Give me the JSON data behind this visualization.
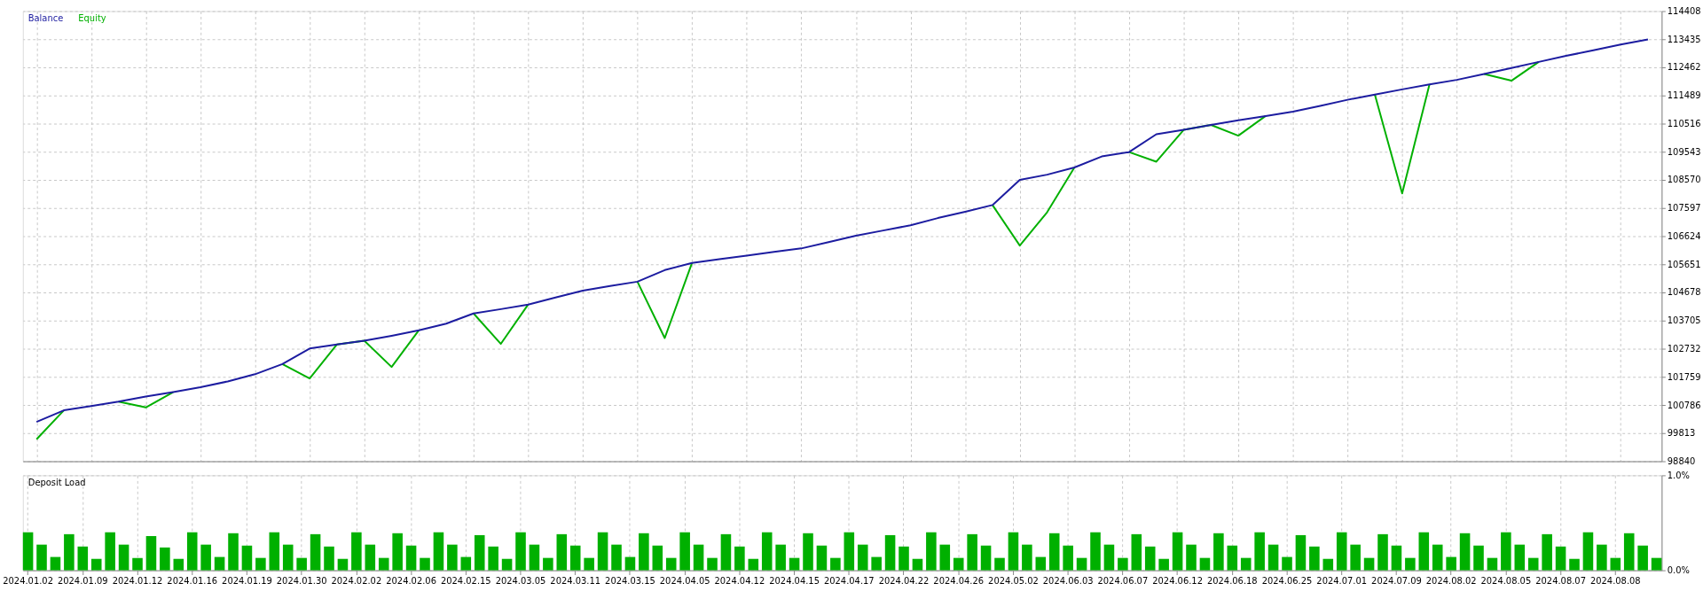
{
  "chart_data": [
    {
      "type": "line",
      "legend": "top left",
      "grid": true,
      "tick_labels": "y",
      "line_style": "solid",
      "marker": "none",
      "categories": [
        "2024.01.02",
        null,
        "2024.01.09",
        null,
        "2024.01.12",
        null,
        "2024.01.16",
        null,
        "2024.01.19",
        null,
        "2024.01.30",
        null,
        "2024.02.02",
        null,
        "2024.02.06",
        null,
        "2024.02.15",
        null,
        "2024.03.05",
        null,
        "2024.03.11",
        null,
        "2024.03.15",
        null,
        "2024.04.05",
        null,
        "2024.04.12",
        null,
        "2024.04.15",
        null,
        "2024.04.17",
        null,
        "2024.04.22",
        null,
        "2024.04.26",
        null,
        "2024.05.02",
        null,
        "2024.06.03",
        null,
        "2024.06.07",
        null,
        "2024.06.12",
        null,
        "2024.06.18",
        null,
        "2024.06.25",
        null,
        "2024.07.01",
        null,
        "2024.07.09",
        null,
        "2024.08.02",
        null,
        "2024.08.05",
        null,
        "2024.08.07",
        null,
        "2024.08.08",
        null
      ],
      "ylim": [
        98840,
        114408
      ],
      "yticks": [
        98840,
        99813,
        100786,
        101759,
        102732,
        103705,
        104678,
        105651,
        106624,
        107597,
        108570,
        109543,
        110516,
        111489,
        112462,
        113435,
        114408
      ],
      "series": [
        {
          "name": "Equity",
          "color": "#00b000",
          "values": [
            99600,
            100600,
            null,
            100900,
            100700,
            101230,
            null,
            null,
            null,
            102200,
            101700,
            102880,
            103010,
            102100,
            103370,
            null,
            103950,
            102900,
            104260,
            null,
            null,
            null,
            105050,
            103100,
            105700,
            null,
            null,
            null,
            null,
            null,
            null,
            null,
            null,
            null,
            null,
            107700,
            106300,
            107450,
            109000,
            null,
            109530,
            109200,
            110300,
            110470,
            110100,
            110780,
            null,
            null,
            null,
            111520,
            108100,
            111870,
            null,
            112230,
            112000,
            112650,
            null,
            null,
            null,
            null
          ]
        },
        {
          "name": "Balance",
          "color": "#1c1ca0",
          "values": [
            100200,
            100600,
            100750,
            100900,
            101080,
            101230,
            101400,
            101600,
            101850,
            102200,
            102740,
            102880,
            103010,
            103180,
            103370,
            103600,
            103950,
            104100,
            104260,
            104500,
            104740,
            104900,
            105050,
            105450,
            105700,
            105830,
            105950,
            106080,
            106200,
            106420,
            106640,
            106820,
            107000,
            107250,
            107470,
            107700,
            108570,
            108750,
            109000,
            109380,
            109530,
            110150,
            110300,
            110470,
            110630,
            110780,
            110930,
            111130,
            111340,
            111520,
            111700,
            111870,
            112030,
            112230,
            112440,
            112650,
            112860,
            113050,
            113250,
            113430
          ]
        }
      ]
    },
    {
      "type": "bar",
      "title": "Deposit Load",
      "grid": true,
      "color": "#00b000",
      "categories": [
        "2024.01.02",
        null,
        null,
        null,
        "2024.01.09",
        null,
        null,
        null,
        "2024.01.12",
        null,
        null,
        null,
        "2024.01.16",
        null,
        null,
        null,
        "2024.01.19",
        null,
        null,
        null,
        "2024.01.30",
        null,
        null,
        null,
        "2024.02.02",
        null,
        null,
        null,
        "2024.02.06",
        null,
        null,
        null,
        "2024.02.15",
        null,
        null,
        null,
        "2024.03.05",
        null,
        null,
        null,
        "2024.03.11",
        null,
        null,
        null,
        "2024.03.15",
        null,
        null,
        null,
        "2024.04.05",
        null,
        null,
        null,
        "2024.04.12",
        null,
        null,
        null,
        "2024.04.15",
        null,
        null,
        null,
        "2024.04.17",
        null,
        null,
        null,
        "2024.04.22",
        null,
        null,
        null,
        "2024.04.26",
        null,
        null,
        null,
        "2024.05.02",
        null,
        null,
        null,
        "2024.06.03",
        null,
        null,
        null,
        "2024.06.07",
        null,
        null,
        null,
        "2024.06.12",
        null,
        null,
        null,
        "2024.06.18",
        null,
        null,
        null,
        "2024.06.25",
        null,
        null,
        null,
        "2024.07.01",
        null,
        null,
        null,
        "2024.07.09",
        null,
        null,
        null,
        "2024.08.02",
        null,
        null,
        null,
        "2024.08.05",
        null,
        null,
        null,
        "2024.08.07",
        null,
        null,
        null,
        "2024.08.08",
        null,
        null,
        null
      ],
      "ylim": [
        0,
        1
      ],
      "yticks": [
        {
          "value": 1,
          "label": "1.0%"
        },
        {
          "value": 0,
          "label": "0.0%"
        }
      ],
      "values": [
        0.4,
        0.27,
        0.14,
        0.38,
        0.25,
        0.12,
        0.4,
        0.27,
        0.13,
        0.36,
        0.24,
        0.12,
        0.4,
        0.27,
        0.14,
        0.39,
        0.26,
        0.13,
        0.4,
        0.27,
        0.13,
        0.38,
        0.25,
        0.12,
        0.4,
        0.27,
        0.13,
        0.39,
        0.26,
        0.13,
        0.4,
        0.27,
        0.14,
        0.37,
        0.25,
        0.12,
        0.4,
        0.27,
        0.13,
        0.38,
        0.26,
        0.13,
        0.4,
        0.27,
        0.14,
        0.39,
        0.26,
        0.13,
        0.4,
        0.27,
        0.13,
        0.38,
        0.25,
        0.12,
        0.4,
        0.27,
        0.13,
        0.39,
        0.26,
        0.13,
        0.4,
        0.27,
        0.14,
        0.37,
        0.25,
        0.12,
        0.4,
        0.27,
        0.13,
        0.38,
        0.26,
        0.13,
        0.4,
        0.27,
        0.14,
        0.39,
        0.26,
        0.13,
        0.4,
        0.27,
        0.13,
        0.38,
        0.25,
        0.12,
        0.4,
        0.27,
        0.13,
        0.39,
        0.26,
        0.13,
        0.4,
        0.27,
        0.14,
        0.37,
        0.25,
        0.12,
        0.4,
        0.27,
        0.13,
        0.38,
        0.26,
        0.13,
        0.4,
        0.27,
        0.14,
        0.39,
        0.26,
        0.13,
        0.4,
        0.27,
        0.13,
        0.38,
        0.25,
        0.12,
        0.4,
        0.27,
        0.13,
        0.39,
        0.26,
        0.13
      ]
    }
  ]
}
